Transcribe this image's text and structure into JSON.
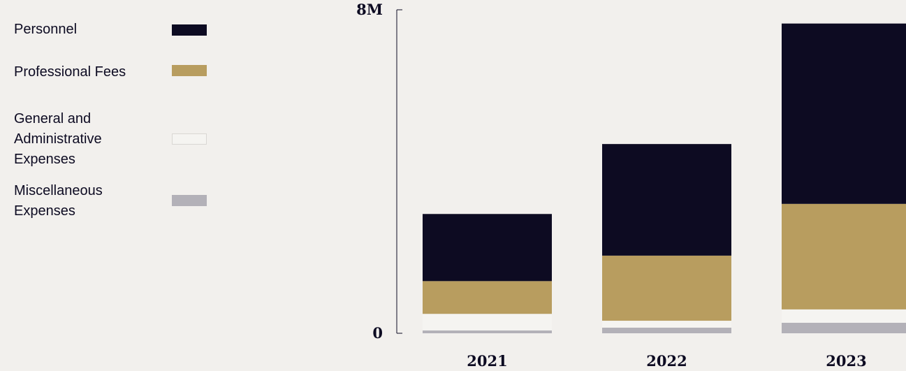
{
  "chart_data": {
    "type": "bar",
    "stacked": true,
    "categories": [
      "2021",
      "2022",
      "2023"
    ],
    "series": [
      {
        "name": "Personnel",
        "color": "#0d0b22",
        "values": [
          1660000,
          2760000,
          4460000
        ]
      },
      {
        "name": "Professional Fees",
        "color": "#b89d5f",
        "values": [
          810000,
          1610000,
          2610000
        ]
      },
      {
        "name": "General and Administrative Expenses",
        "color": "#f5f4f1",
        "values": [
          410000,
          170000,
          330000
        ]
      },
      {
        "name": "Miscellaneous Expenses",
        "color": "#b3b1b8",
        "values": [
          70000,
          140000,
          260000
        ]
      }
    ],
    "ylim": [
      0,
      8000000
    ],
    "yticks": [
      0,
      {
        "value": 8000000,
        "label": "8M"
      }
    ],
    "legend": "left"
  }
}
